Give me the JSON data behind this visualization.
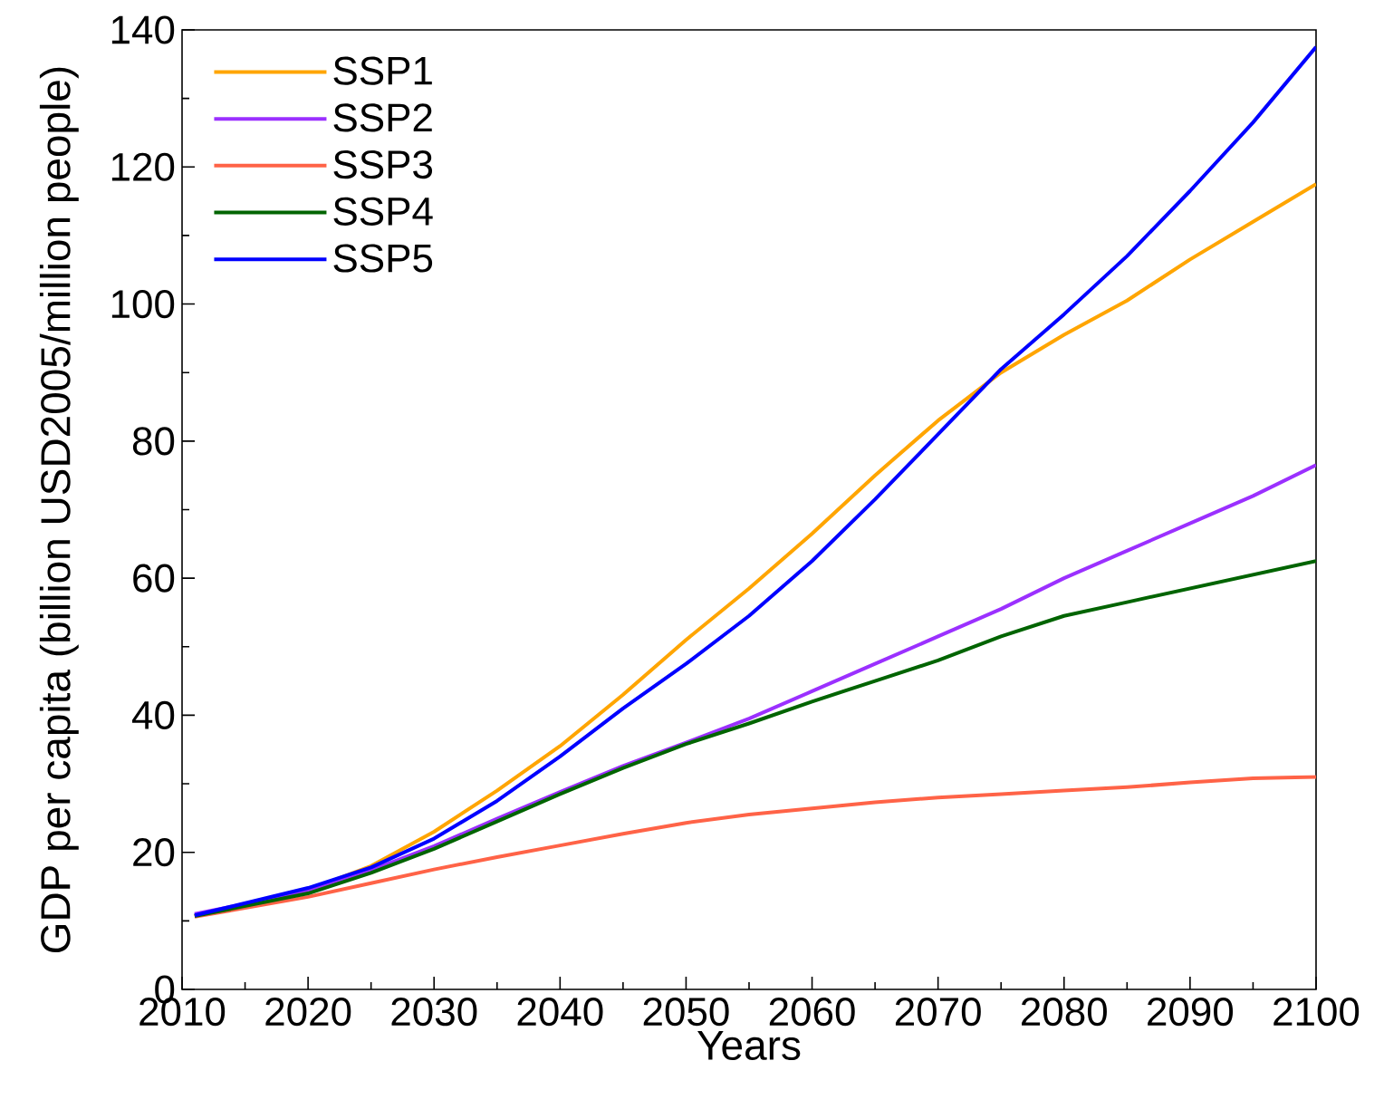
{
  "chart_data": {
    "type": "line",
    "xlabel": "Years",
    "ylabel": "GDP per capita (billion USD2005/million people)",
    "x": [
      2011,
      2020,
      2025,
      2030,
      2035,
      2040,
      2045,
      2050,
      2055,
      2060,
      2065,
      2070,
      2075,
      2080,
      2085,
      2090,
      2095,
      2100
    ],
    "series": [
      {
        "name": "SSP1",
        "color": "#ffa500",
        "values": [
          10.7,
          14.5,
          18,
          23,
          29,
          35.5,
          43,
          51,
          58.5,
          66.5,
          75,
          83,
          90,
          95.5,
          100.5,
          106.5,
          112,
          117.5
        ]
      },
      {
        "name": "SSP2",
        "color": "#9b30ff",
        "values": [
          11.0,
          14.3,
          17.4,
          20.9,
          24.9,
          28.8,
          32.6,
          36,
          39.5,
          43.5,
          47.5,
          51.5,
          55.5,
          60,
          64,
          68,
          72,
          76.5
        ]
      },
      {
        "name": "SSP3",
        "color": "#ff6347",
        "values": [
          10.6,
          13.5,
          15.5,
          17.5,
          19.3,
          21,
          22.7,
          24.3,
          25.5,
          26.4,
          27.3,
          28,
          28.5,
          29,
          29.5,
          30.2,
          30.8,
          31
        ]
      },
      {
        "name": "SSP4",
        "color": "#006400",
        "values": [
          10.7,
          14,
          17,
          20.5,
          24.5,
          28.5,
          32.3,
          35.8,
          38.8,
          42,
          45,
          48,
          51.5,
          54.5,
          56.5,
          58.5,
          60.5,
          62.5
        ]
      },
      {
        "name": "SSP5",
        "color": "#0000ff",
        "values": [
          10.8,
          14.8,
          17.8,
          22,
          27.5,
          34,
          41,
          47.5,
          54.5,
          62.5,
          71.5,
          81,
          90.5,
          98.5,
          107,
          116.5,
          126.5,
          137.5
        ]
      }
    ],
    "xlim": [
      2010,
      2100
    ],
    "ylim": [
      0,
      140
    ],
    "xticks": [
      2010,
      2020,
      2030,
      2040,
      2050,
      2060,
      2070,
      2080,
      2090,
      2100
    ],
    "yticks": [
      0,
      20,
      40,
      60,
      80,
      100,
      120,
      140
    ],
    "legend": "top left"
  }
}
